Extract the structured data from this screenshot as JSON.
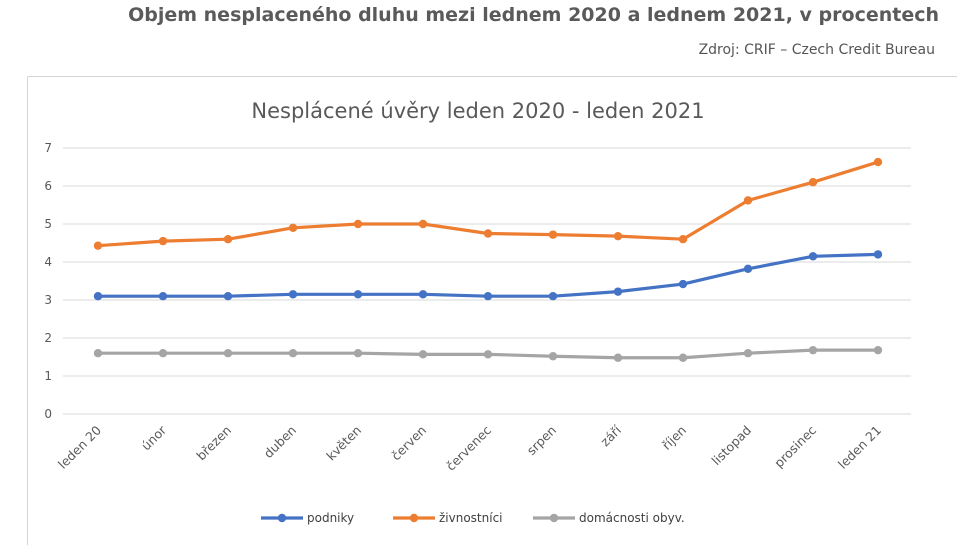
{
  "header": {
    "title": "Objem nesplaceného dluhu mezi lednem 2020 a lednem 2021, v procentech",
    "source": "Zdroj: CRIF – Czech Credit Bureau"
  },
  "chart_data": {
    "type": "line",
    "title": "Nesplácené úvěry leden 2020 - leden 2021",
    "xlabel": "",
    "ylabel": "",
    "ylim": [
      0,
      7
    ],
    "yticks": [
      "0",
      "1",
      "2",
      "3",
      "4",
      "5",
      "6",
      "7"
    ],
    "grid": true,
    "legend_position": "bottom",
    "categories": [
      "leden 20",
      "únor",
      "březen",
      "duben",
      "květen",
      "červen",
      "červenec",
      "srpen",
      "září",
      "říjen",
      "listopad",
      "prosinec",
      "leden 21"
    ],
    "series": [
      {
        "name": "podniky",
        "color": "#4472c4",
        "values": [
          3.1,
          3.1,
          3.1,
          3.15,
          3.15,
          3.15,
          3.1,
          3.1,
          3.22,
          3.42,
          3.82,
          4.15,
          4.2
        ]
      },
      {
        "name": "živnostníci",
        "color": "#ed7d31",
        "values": [
          4.43,
          4.55,
          4.6,
          4.9,
          5.0,
          5.0,
          4.75,
          4.72,
          4.68,
          4.6,
          5.62,
          6.1,
          6.63
        ]
      },
      {
        "name": "domácnosti obyv.",
        "color": "#a5a5a5",
        "values": [
          1.6,
          1.6,
          1.6,
          1.6,
          1.6,
          1.57,
          1.57,
          1.52,
          1.48,
          1.48,
          1.6,
          1.68,
          1.68
        ]
      }
    ]
  }
}
